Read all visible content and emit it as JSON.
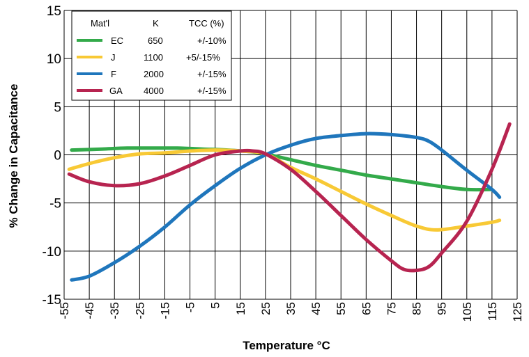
{
  "chart_data": {
    "type": "line",
    "title": "",
    "xlabel": "Temperature °C",
    "ylabel": "% Change in Capacitance",
    "xlim": [
      -55,
      125
    ],
    "ylim": [
      -15,
      15
    ],
    "xticks": [
      -55,
      -45,
      -35,
      -25,
      -15,
      -5,
      5,
      15,
      25,
      35,
      45,
      55,
      65,
      75,
      85,
      95,
      105,
      115,
      125
    ],
    "xtick_labels": [
      "-55",
      "-45",
      "-35",
      "-25",
      "-15",
      "-5",
      "5",
      "15",
      "25",
      "35",
      "45",
      "55",
      "65",
      "75",
      "85",
      "95",
      "105",
      "115",
      "125"
    ],
    "yticks": [
      15,
      10,
      5,
      0,
      -5,
      -10,
      -15
    ],
    "ytick_labels": [
      "15",
      "10",
      "5",
      "0",
      "-5",
      "-10",
      "-15"
    ],
    "grid": true,
    "legend": {
      "placement": "top-left",
      "headers": [
        "Mat'l",
        "K",
        "TCC (%)"
      ],
      "entries": [
        {
          "name": "EC",
          "k": "650",
          "tcc": "+/-10%"
        },
        {
          "name": "J",
          "k": "1100",
          "tcc": "+5/-15%"
        },
        {
          "name": "F",
          "k": "2000",
          "tcc": "+/-15%"
        },
        {
          "name": "GA",
          "k": "4000",
          "tcc": "+/-15%"
        }
      ]
    },
    "series": [
      {
        "name": "EC",
        "color": "#33aa4a",
        "points": [
          [
            -52,
            0.5
          ],
          [
            -40,
            0.6
          ],
          [
            -30,
            0.7
          ],
          [
            -20,
            0.7
          ],
          [
            -10,
            0.7
          ],
          [
            0,
            0.6
          ],
          [
            10,
            0.5
          ],
          [
            20,
            0.3
          ],
          [
            25,
            0.1
          ],
          [
            35,
            -0.5
          ],
          [
            45,
            -1.1
          ],
          [
            55,
            -1.6
          ],
          [
            65,
            -2.1
          ],
          [
            75,
            -2.5
          ],
          [
            85,
            -2.9
          ],
          [
            95,
            -3.3
          ],
          [
            105,
            -3.6
          ],
          [
            115,
            -3.6
          ]
        ]
      },
      {
        "name": "J",
        "color": "#f8c935",
        "points": [
          [
            -53,
            -1.5
          ],
          [
            -45,
            -0.9
          ],
          [
            -35,
            -0.3
          ],
          [
            -25,
            0.1
          ],
          [
            -15,
            0.2
          ],
          [
            -5,
            0.4
          ],
          [
            5,
            0.5
          ],
          [
            15,
            0.4
          ],
          [
            25,
            0.1
          ],
          [
            35,
            -1.3
          ],
          [
            45,
            -2.5
          ],
          [
            55,
            -3.8
          ],
          [
            65,
            -5.1
          ],
          [
            75,
            -6.3
          ],
          [
            85,
            -7.4
          ],
          [
            93,
            -7.8
          ],
          [
            105,
            -7.4
          ],
          [
            115,
            -7.0
          ],
          [
            118,
            -6.8
          ]
        ]
      },
      {
        "name": "F",
        "color": "#1f76bc",
        "points": [
          [
            -52,
            -13.0
          ],
          [
            -45,
            -12.6
          ],
          [
            -35,
            -11.2
          ],
          [
            -25,
            -9.5
          ],
          [
            -15,
            -7.5
          ],
          [
            -5,
            -5.2
          ],
          [
            5,
            -3.2
          ],
          [
            15,
            -1.4
          ],
          [
            25,
            0.0
          ],
          [
            35,
            1.0
          ],
          [
            45,
            1.7
          ],
          [
            55,
            2.0
          ],
          [
            65,
            2.2
          ],
          [
            75,
            2.1
          ],
          [
            85,
            1.8
          ],
          [
            90,
            1.4
          ],
          [
            95,
            0.5
          ],
          [
            105,
            -1.6
          ],
          [
            115,
            -3.6
          ],
          [
            118,
            -4.4
          ]
        ]
      },
      {
        "name": "GA",
        "color": "#b72450",
        "points": [
          [
            -53,
            -2.0
          ],
          [
            -45,
            -2.8
          ],
          [
            -35,
            -3.2
          ],
          [
            -25,
            -3.0
          ],
          [
            -15,
            -2.2
          ],
          [
            -5,
            -1.1
          ],
          [
            5,
            0.0
          ],
          [
            15,
            0.4
          ],
          [
            20,
            0.4
          ],
          [
            25,
            0.1
          ],
          [
            35,
            -1.5
          ],
          [
            45,
            -3.8
          ],
          [
            55,
            -6.3
          ],
          [
            65,
            -8.8
          ],
          [
            75,
            -11.0
          ],
          [
            80,
            -11.9
          ],
          [
            85,
            -12.0
          ],
          [
            90,
            -11.6
          ],
          [
            95,
            -10.2
          ],
          [
            105,
            -6.9
          ],
          [
            115,
            -1.5
          ],
          [
            122,
            3.2
          ]
        ]
      }
    ]
  }
}
